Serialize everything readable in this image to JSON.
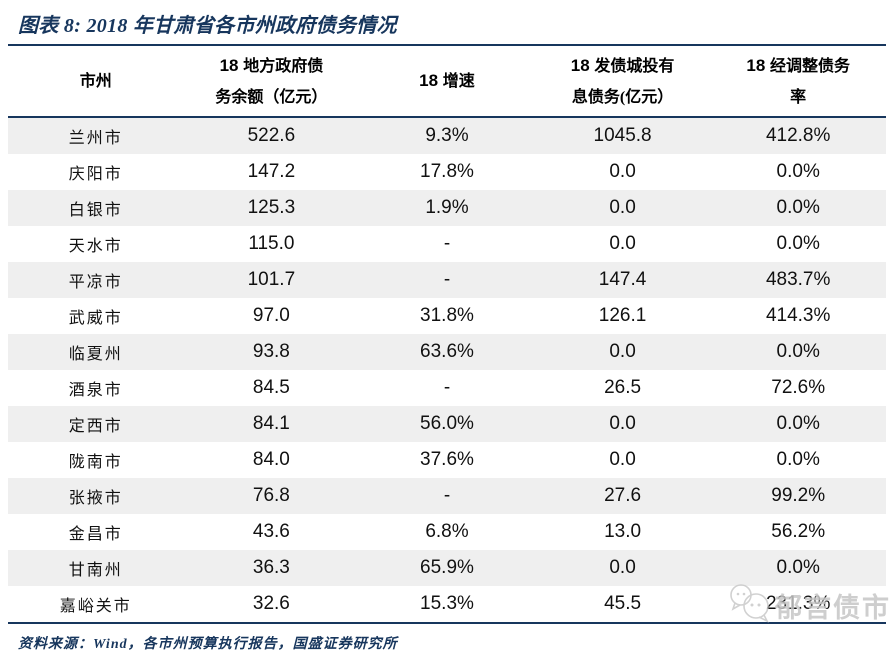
{
  "colors": {
    "navy_accent": "#17365D",
    "row_shade": "#EFEFEF",
    "data_text": "#111111",
    "watermark_gray": "#C6C6C6",
    "background": "#FFFFFF"
  },
  "source_line": "资料来源：Wind，各市州预算执行报告，国盛证券研究所",
  "watermark": {
    "text": "郁言债市",
    "icon": "chat-bubbles-icon"
  },
  "chart_data": {
    "type": "table",
    "title": "图表 8:  2018 年甘肃省各市州政府债务情况",
    "columns": [
      {
        "id": "city",
        "lines": [
          "市州"
        ]
      },
      {
        "id": "local-gov-debt-balance",
        "lines": [
          "18 地方政府债",
          "务余额（亿元）"
        ]
      },
      {
        "id": "growth-rate",
        "lines": [
          "18 增速"
        ]
      },
      {
        "id": "lgfv-interest-bearing-debt",
        "lines": [
          "18 发债城投有",
          "息债务(亿元）"
        ]
      },
      {
        "id": "adjusted-debt-ratio",
        "lines": [
          "18 经调整债务",
          "率"
        ]
      }
    ],
    "rows": [
      [
        "兰州市",
        "522.6",
        "9.3%",
        "1045.8",
        "412.8%"
      ],
      [
        "庆阳市",
        "147.2",
        "17.8%",
        "0.0",
        "0.0%"
      ],
      [
        "白银市",
        "125.3",
        "1.9%",
        "0.0",
        "0.0%"
      ],
      [
        "天水市",
        "115.0",
        "-",
        "0.0",
        "0.0%"
      ],
      [
        "平凉市",
        "101.7",
        "-",
        "147.4",
        "483.7%"
      ],
      [
        "武威市",
        "97.0",
        "31.8%",
        "126.1",
        "414.3%"
      ],
      [
        "临夏州",
        "93.8",
        "63.6%",
        "0.0",
        "0.0%"
      ],
      [
        "酒泉市",
        "84.5",
        "-",
        "26.5",
        "72.6%"
      ],
      [
        "定西市",
        "84.1",
        "56.0%",
        "0.0",
        "0.0%"
      ],
      [
        "陇南市",
        "84.0",
        "37.6%",
        "0.0",
        "0.0%"
      ],
      [
        "张掖市",
        "76.8",
        "-",
        "27.6",
        "99.2%"
      ],
      [
        "金昌市",
        "43.6",
        "6.8%",
        "13.0",
        "56.2%"
      ],
      [
        "甘南州",
        "36.3",
        "65.9%",
        "0.0",
        "0.0%"
      ],
      [
        "嘉峪关市",
        "32.6",
        "15.3%",
        "45.5",
        "231.3%"
      ]
    ]
  }
}
